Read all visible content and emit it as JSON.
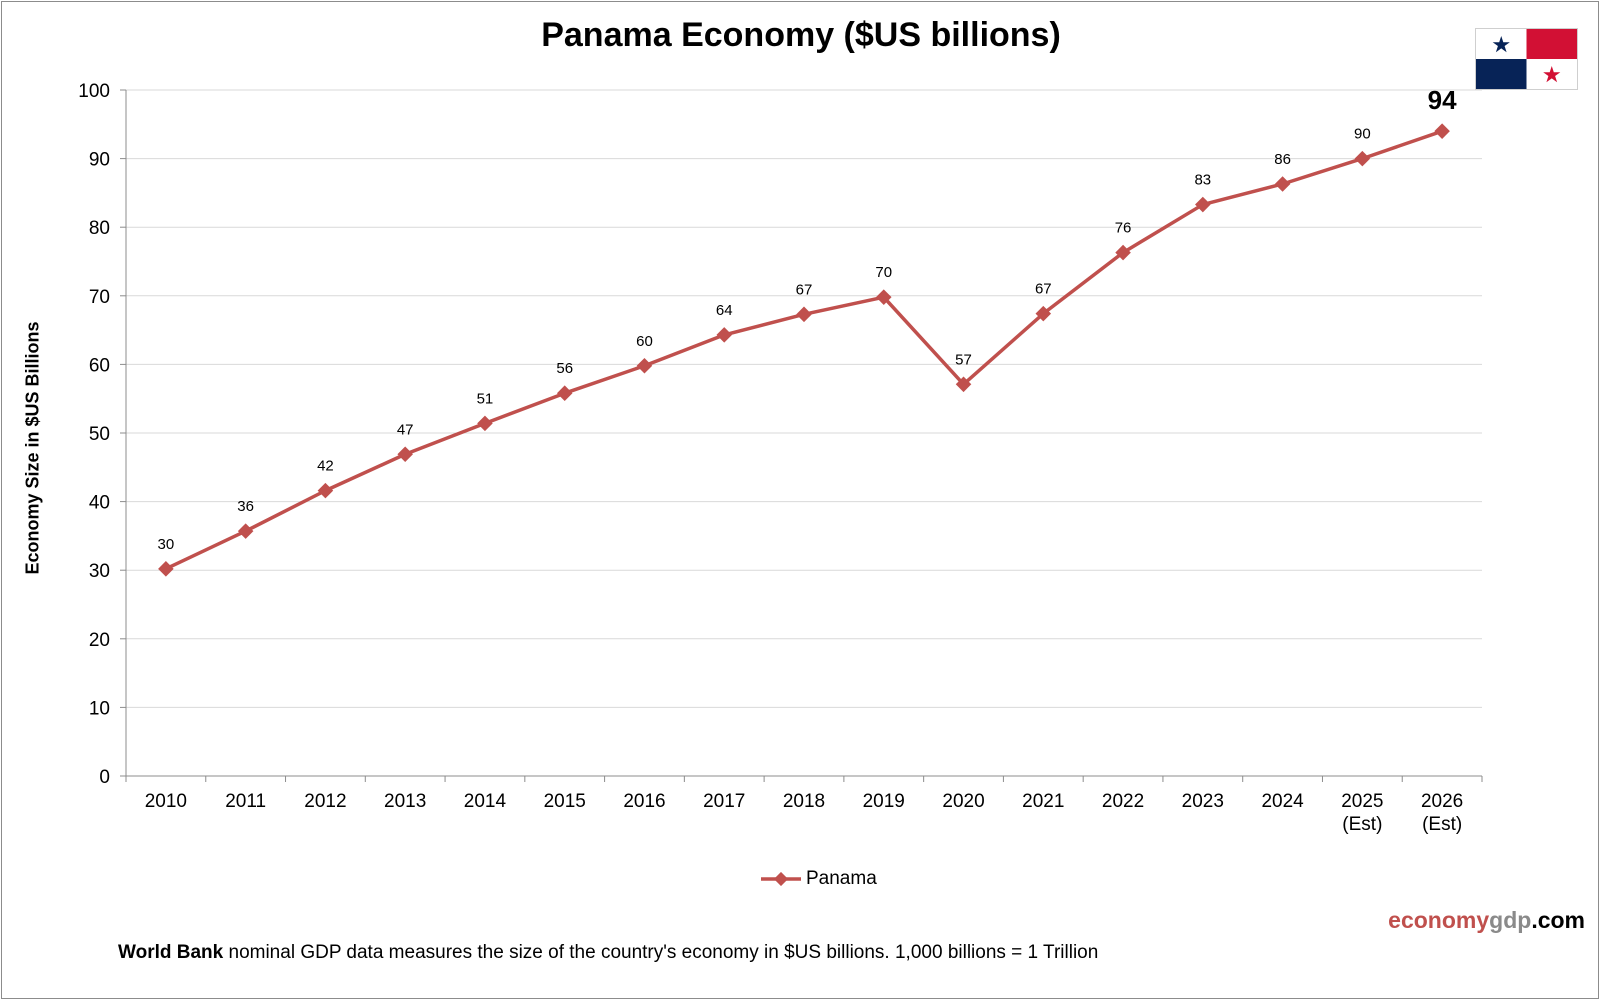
{
  "chart_data": {
    "type": "line",
    "title": "Panama Economy ($US billions)",
    "ylabel": "Economy Size in $US Billions",
    "xlabel": "",
    "ylim": [
      0,
      100
    ],
    "yticks": [
      0,
      10,
      20,
      30,
      40,
      50,
      60,
      70,
      80,
      90,
      100
    ],
    "categories": [
      [
        "2010"
      ],
      [
        "2011"
      ],
      [
        "2012"
      ],
      [
        "2013"
      ],
      [
        "2014"
      ],
      [
        "2015"
      ],
      [
        "2016"
      ],
      [
        "2017"
      ],
      [
        "2018"
      ],
      [
        "2019"
      ],
      [
        "2020"
      ],
      [
        "2021"
      ],
      [
        "2022"
      ],
      [
        "2023"
      ],
      [
        "2024"
      ],
      [
        "2025",
        "(Est)"
      ],
      [
        "2026",
        "(Est)"
      ]
    ],
    "series": [
      {
        "name": "Panama",
        "color": "#c0504d",
        "values": [
          30.2,
          35.7,
          41.6,
          46.9,
          51.4,
          55.8,
          59.8,
          64.3,
          67.3,
          69.8,
          57.1,
          67.4,
          76.3,
          83.3,
          86.3,
          90.0,
          94.0
        ],
        "labels": [
          "30",
          "36",
          "42",
          "47",
          "51",
          "56",
          "60",
          "64",
          "67",
          "70",
          "57",
          "67",
          "76",
          "83",
          "86",
          "90",
          "94"
        ]
      }
    ],
    "grid": true,
    "legend_position": "bottom"
  },
  "footnote": {
    "bold": "World Bank",
    "rest": " nominal GDP data  measures the size of the country's economy in $US billions.  1,000 billions = 1 Trillion"
  },
  "brand": {
    "part1": "economy",
    "part2": "gdp",
    "part3": ".com"
  },
  "flag": {
    "icon": "panama-flag-icon",
    "colors": {
      "white": "#ffffff",
      "red": "#d21034",
      "blue": "#072357"
    }
  }
}
